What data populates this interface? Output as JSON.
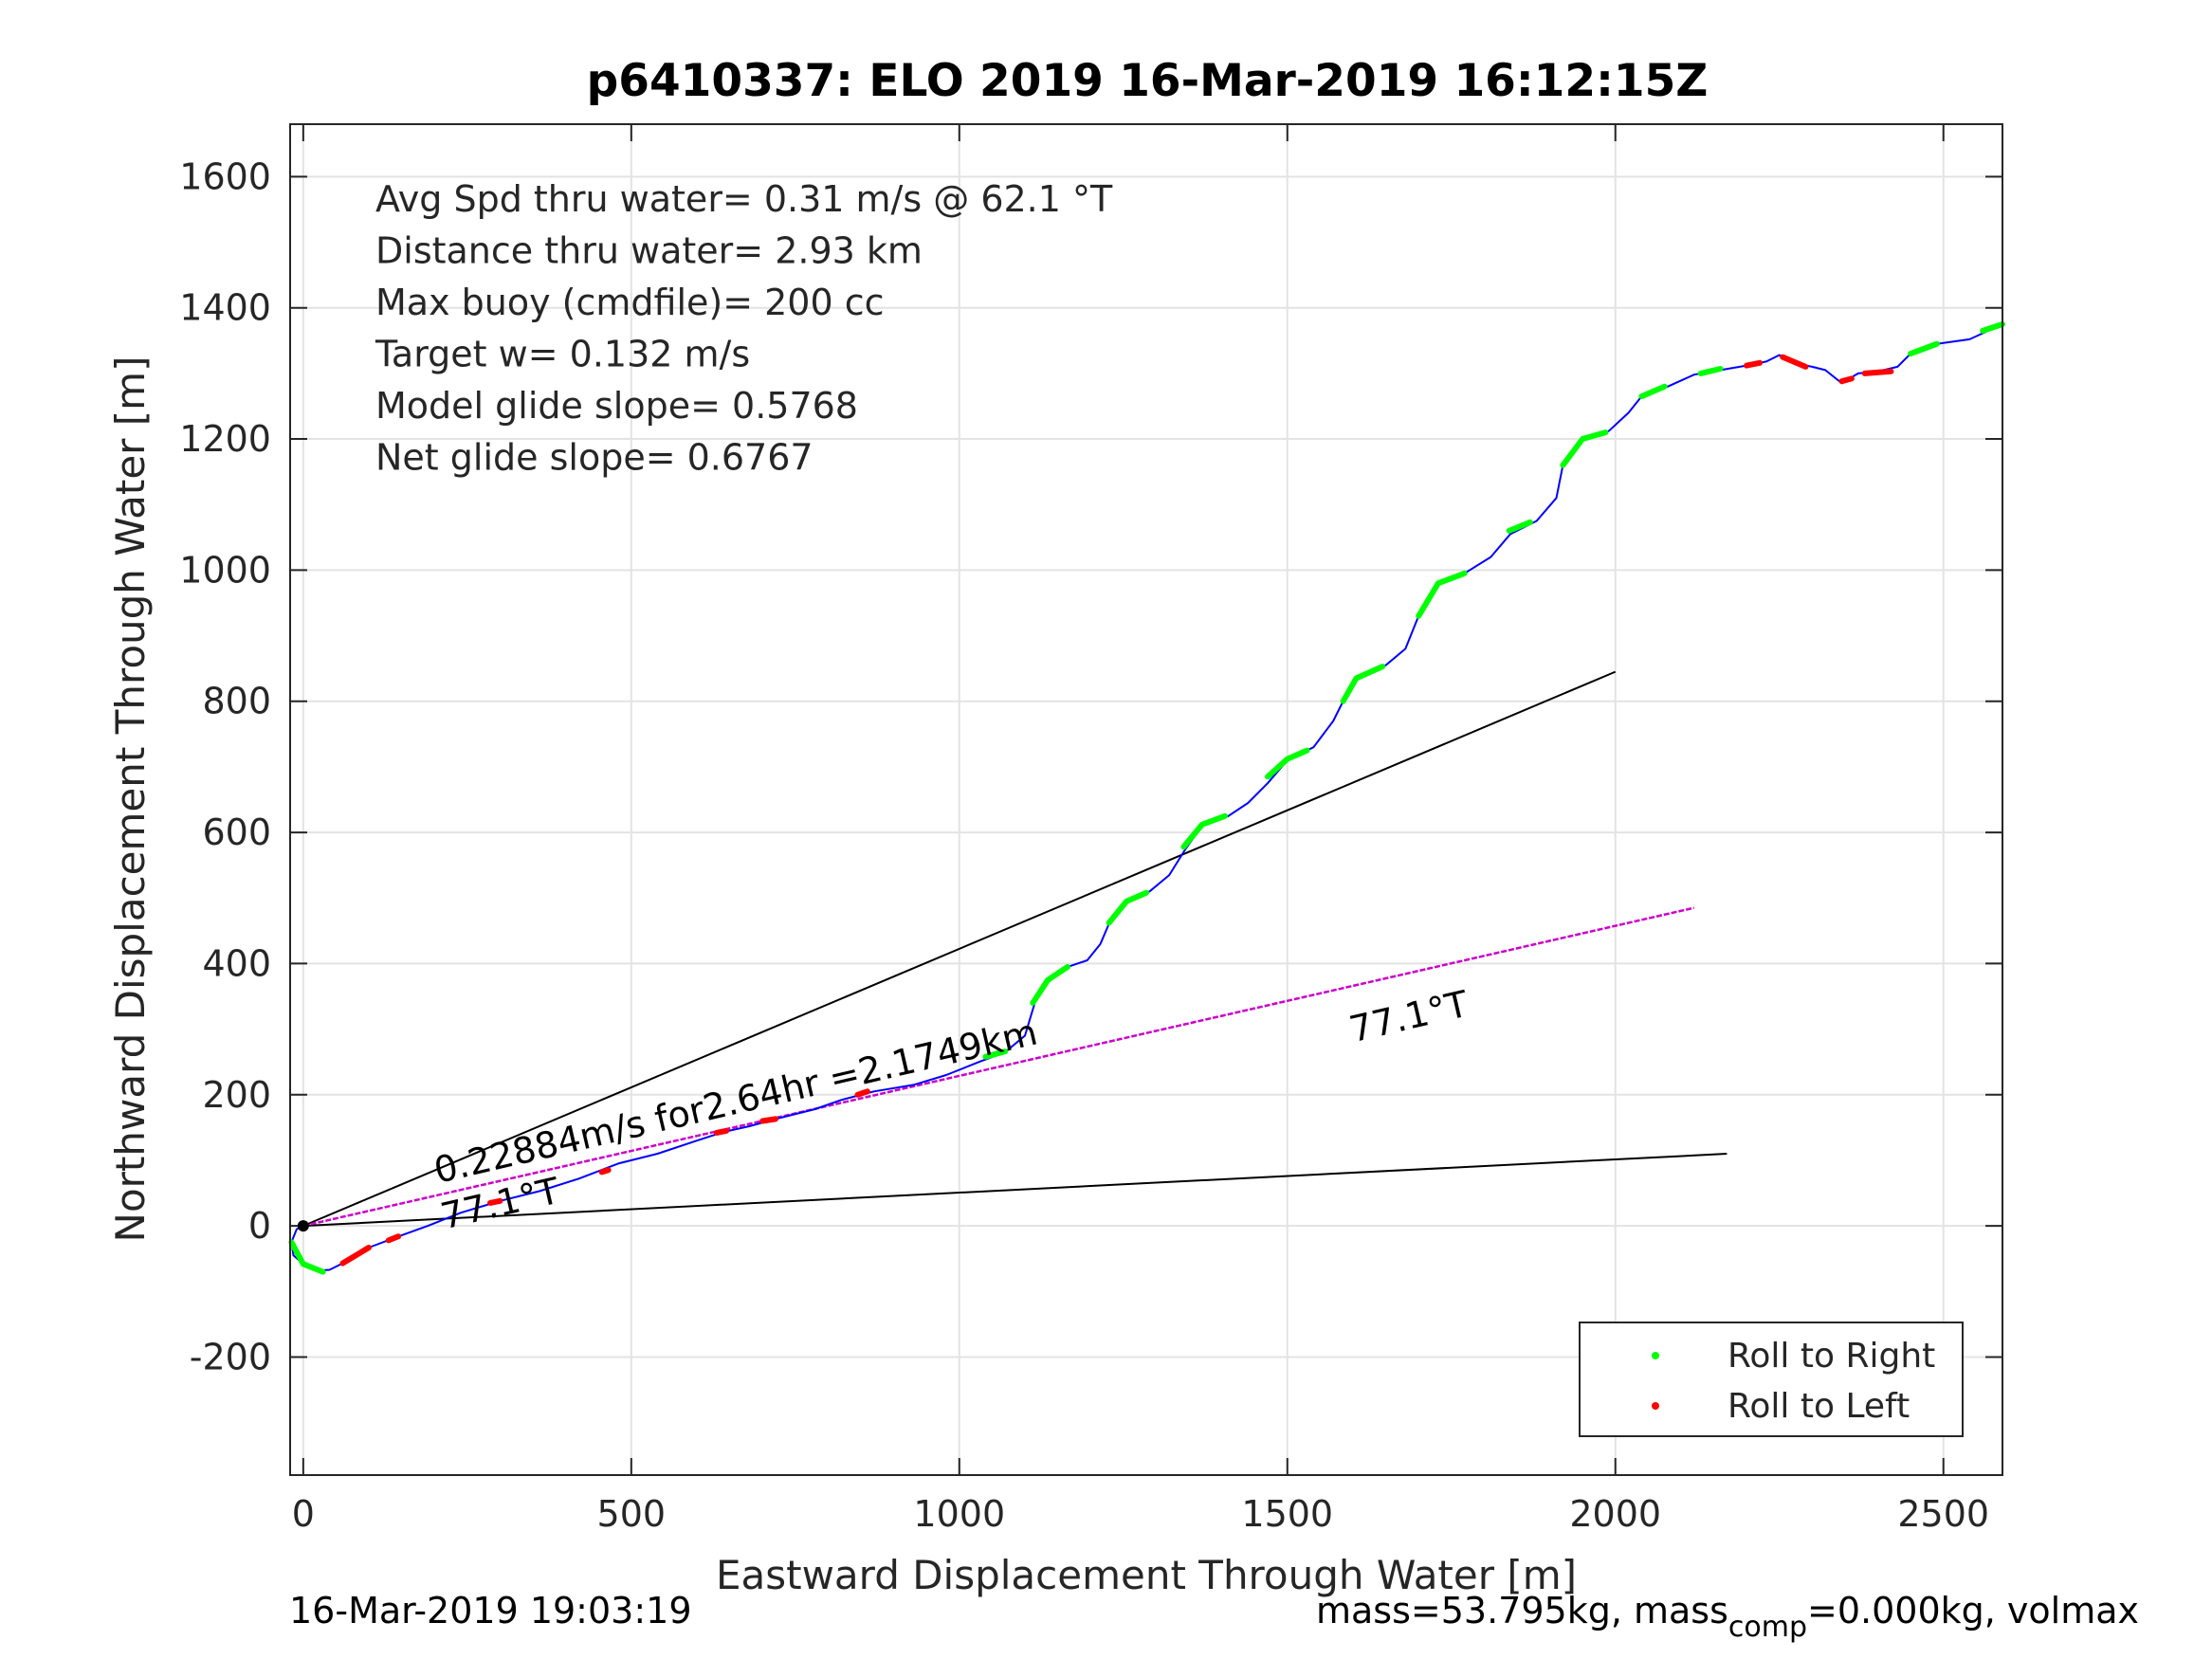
{
  "chart_data": {
    "type": "line",
    "title": "p6410337: ELO 2019 16-Mar-2019 16:12:15Z",
    "xlabel": "Eastward Displacement Through Water [m]",
    "ylabel": "Northward Displacement Through Water [m]",
    "xlim": [
      -20,
      2590
    ],
    "ylim": [
      -380,
      1680
    ],
    "xticks": [
      0,
      500,
      1000,
      1500,
      2000,
      2500
    ],
    "yticks": [
      -200,
      0,
      200,
      400,
      600,
      800,
      1000,
      1200,
      1400,
      1600
    ],
    "grid": true,
    "stats": [
      "Avg Spd thru water=  0.31 m/s @  62.1 °T",
      "Distance thru water=  2.93 km",
      "Max buoy (cmdfile)= 200 cc",
      "Target w= 0.132 m/s",
      "Model glide slope= 0.5768",
      "Net glide slope= 0.6767"
    ],
    "track": [
      [
        0,
        0
      ],
      [
        -10,
        -5
      ],
      [
        -18,
        -25
      ],
      [
        -15,
        -45
      ],
      [
        0,
        -58
      ],
      [
        20,
        -68
      ],
      [
        40,
        -67
      ],
      [
        60,
        -57
      ],
      [
        80,
        -45
      ],
      [
        100,
        -33
      ],
      [
        140,
        -18
      ],
      [
        190,
        0
      ],
      [
        240,
        20
      ],
      [
        300,
        38
      ],
      [
        360,
        53
      ],
      [
        420,
        72
      ],
      [
        480,
        95
      ],
      [
        540,
        110
      ],
      [
        600,
        130
      ],
      [
        640,
        143
      ],
      [
        680,
        152
      ],
      [
        720,
        163
      ],
      [
        780,
        178
      ],
      [
        820,
        192
      ],
      [
        870,
        205
      ],
      [
        930,
        215
      ],
      [
        980,
        230
      ],
      [
        1030,
        250
      ],
      [
        1070,
        265
      ],
      [
        1100,
        290
      ],
      [
        1115,
        340
      ],
      [
        1135,
        375
      ],
      [
        1165,
        395
      ],
      [
        1195,
        405
      ],
      [
        1215,
        430
      ],
      [
        1230,
        465
      ],
      [
        1255,
        495
      ],
      [
        1290,
        510
      ],
      [
        1320,
        535
      ],
      [
        1345,
        575
      ],
      [
        1370,
        610
      ],
      [
        1410,
        625
      ],
      [
        1440,
        645
      ],
      [
        1470,
        675
      ],
      [
        1500,
        710
      ],
      [
        1540,
        730
      ],
      [
        1570,
        770
      ],
      [
        1585,
        800
      ],
      [
        1605,
        835
      ],
      [
        1650,
        855
      ],
      [
        1680,
        880
      ],
      [
        1700,
        930
      ],
      [
        1730,
        980
      ],
      [
        1770,
        995
      ],
      [
        1810,
        1020
      ],
      [
        1840,
        1055
      ],
      [
        1880,
        1075
      ],
      [
        1910,
        1110
      ],
      [
        1920,
        1160
      ],
      [
        1950,
        1200
      ],
      [
        1990,
        1212
      ],
      [
        2020,
        1240
      ],
      [
        2040,
        1265
      ],
      [
        2080,
        1280
      ],
      [
        2120,
        1298
      ],
      [
        2160,
        1305
      ],
      [
        2200,
        1312
      ],
      [
        2230,
        1318
      ],
      [
        2250,
        1328
      ],
      [
        2275,
        1315
      ],
      [
        2300,
        1310
      ],
      [
        2320,
        1305
      ],
      [
        2345,
        1285
      ],
      [
        2370,
        1300
      ],
      [
        2400,
        1303
      ],
      [
        2430,
        1310
      ],
      [
        2450,
        1330
      ],
      [
        2490,
        1345
      ],
      [
        2540,
        1352
      ],
      [
        2590,
        1375
      ]
    ],
    "roll_right_segments": [
      [
        [
          -18,
          -25
        ],
        [
          0,
          -58
        ],
        [
          30,
          -70
        ]
      ],
      [
        [
          1040,
          258
        ],
        [
          1070,
          266
        ]
      ],
      [
        [
          1112,
          340
        ],
        [
          1135,
          375
        ],
        [
          1165,
          395
        ]
      ],
      [
        [
          1228,
          462
        ],
        [
          1255,
          495
        ],
        [
          1285,
          508
        ]
      ],
      [
        [
          1342,
          578
        ],
        [
          1370,
          612
        ],
        [
          1405,
          625
        ]
      ],
      [
        [
          1470,
          685
        ],
        [
          1500,
          712
        ],
        [
          1530,
          725
        ]
      ],
      [
        [
          1585,
          800
        ],
        [
          1605,
          835
        ],
        [
          1645,
          853
        ]
      ],
      [
        [
          1700,
          930
        ],
        [
          1730,
          980
        ],
        [
          1770,
          995
        ]
      ],
      [
        [
          1838,
          1060
        ],
        [
          1870,
          1073
        ]
      ],
      [
        [
          1920,
          1160
        ],
        [
          1950,
          1200
        ],
        [
          1985,
          1210
        ]
      ],
      [
        [
          2040,
          1265
        ],
        [
          2075,
          1280
        ]
      ],
      [
        [
          2130,
          1300
        ],
        [
          2160,
          1307
        ]
      ],
      [
        [
          2450,
          1330
        ],
        [
          2490,
          1345
        ]
      ],
      [
        [
          2560,
          1365
        ],
        [
          2590,
          1375
        ]
      ]
    ],
    "roll_left_segments": [
      [
        [
          60,
          -57
        ],
        [
          100,
          -33
        ]
      ],
      [
        [
          130,
          -22
        ],
        [
          145,
          -16
        ]
      ],
      [
        [
          285,
          35
        ],
        [
          300,
          38
        ]
      ],
      [
        [
          455,
          82
        ],
        [
          465,
          85
        ]
      ],
      [
        [
          630,
          142
        ],
        [
          645,
          145
        ]
      ],
      [
        [
          700,
          160
        ],
        [
          720,
          163
        ]
      ],
      [
        [
          845,
          200
        ],
        [
          860,
          205
        ]
      ],
      [
        [
          2200,
          1312
        ],
        [
          2220,
          1316
        ]
      ],
      [
        [
          2255,
          1325
        ],
        [
          2290,
          1310
        ]
      ],
      [
        [
          2345,
          1288
        ],
        [
          2360,
          1292
        ]
      ],
      [
        [
          2380,
          1300
        ],
        [
          2420,
          1303
        ]
      ]
    ],
    "reference_lines": [
      {
        "from": [
          0,
          0
        ],
        "to": [
          2000,
          845
        ],
        "color": "#000000"
      },
      {
        "from": [
          0,
          0
        ],
        "to": [
          2170,
          110
        ],
        "color": "#000000"
      }
    ],
    "current_line": {
      "from": [
        0,
        0
      ],
      "to": [
        2120,
        485
      ],
      "color": "#cc00cc"
    },
    "annotations": [
      {
        "text": "0.22884m/s for2.64hr =2.1749km",
        "x": 205,
        "y": 65,
        "angle": 13.1
      },
      {
        "text": "77.1°T",
        "x": 215,
        "y": -5,
        "angle": 13.1
      },
      {
        "text": "77.1°T",
        "x": 1600,
        "y": 280,
        "angle": 13.1
      }
    ],
    "legend": {
      "position": "bottom-right",
      "entries": [
        {
          "label": "Roll to Right",
          "color": "#00ff00"
        },
        {
          "label": "Roll to Left",
          "color": "#ff0000"
        }
      ]
    },
    "colors": {
      "track": "#0000ff",
      "roll_right": "#00ff00",
      "roll_left": "#ff0000",
      "reference": "#000000",
      "current": "#cc00cc"
    }
  },
  "footer": {
    "timestamp": "16-Mar-2019 19:03:19",
    "mass_prefix": "mass=53.795kg, mass",
    "mass_sub": "comp",
    "mass_suffix": "=0.000kg, volmax"
  }
}
